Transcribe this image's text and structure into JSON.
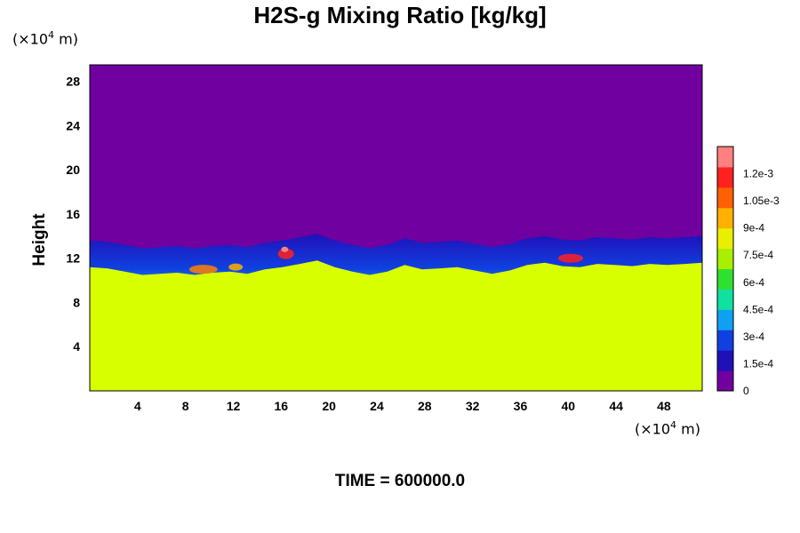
{
  "chart_data": {
    "type": "heatmap",
    "title": "H2S-g Mixing Ratio [kg/kg]",
    "ylabel": "Height",
    "x_unit": {
      "prefix": "(×10",
      "exp": "4",
      "suffix": " m)"
    },
    "y_unit": {
      "prefix": "(×10",
      "exp": "4",
      "suffix": " m)"
    },
    "x_ticks": [
      "4",
      "8",
      "12",
      "16",
      "20",
      "24",
      "28",
      "32",
      "36",
      "40",
      "44",
      "48"
    ],
    "y_ticks": [
      "4",
      "8",
      "12",
      "16",
      "20",
      "24",
      "28"
    ],
    "xlim": [
      0,
      51.2
    ],
    "ylim": [
      0,
      29.5
    ],
    "colorbar": {
      "labels": [
        "0",
        "1.5e-4",
        "3e-4",
        "4.5e-4",
        "6e-4",
        "7.5e-4",
        "9e-4",
        "1.05e-3",
        "1.2e-3"
      ],
      "values": [
        0,
        0.00015,
        0.0003,
        0.00045,
        0.0006,
        0.00075,
        0.0009,
        0.00105,
        0.0012
      ],
      "max": 0.00135,
      "colors": [
        "#7000a0",
        "#2010b8",
        "#1040e0",
        "#10a0f0",
        "#10e0a0",
        "#30e030",
        "#a8f000",
        "#e8f000",
        "#ffb000",
        "#ff6000",
        "#ff2020",
        "#ff8080"
      ]
    },
    "regions": [
      {
        "name": "upper-layer",
        "value": 0,
        "color": "#7000a0"
      },
      {
        "name": "lower-layer",
        "value": 0.00085,
        "color": "#d8ff00"
      }
    ],
    "layer_top_height": [
      13.6,
      13.5,
      13.2,
      12.9,
      13.0,
      13.1,
      12.9,
      13.1,
      13.2,
      13.0,
      13.4,
      13.6,
      13.9,
      14.2,
      13.6,
      13.2,
      12.9,
      13.2,
      13.8,
      13.4,
      13.5,
      13.6,
      13.3,
      13.0,
      13.3,
      13.8,
      14.0,
      13.7,
      13.6,
      13.9,
      13.8,
      13.7,
      13.9,
      13.8,
      13.9,
      14.0
    ]
  },
  "footer": {
    "time": "TIME = 600000.0"
  }
}
